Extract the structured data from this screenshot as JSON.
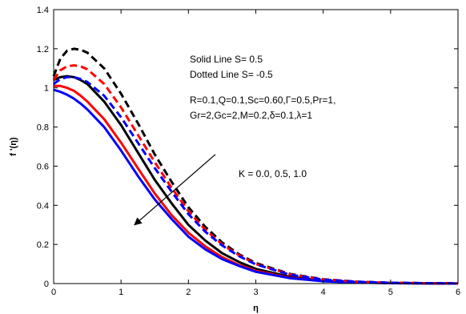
{
  "chart_data": {
    "type": "line",
    "xlabel": "η",
    "ylabel": "f '(η)",
    "xlim": [
      0,
      6
    ],
    "ylim": [
      0,
      1.4
    ],
    "xticks": [
      0,
      1,
      2,
      3,
      4,
      5,
      6
    ],
    "yticks": [
      0,
      0.2,
      0.4,
      0.6,
      0.8,
      1,
      1.2,
      1.4
    ],
    "grid": false,
    "x": [
      0,
      0.1,
      0.2,
      0.3,
      0.4,
      0.5,
      0.75,
      1.0,
      1.25,
      1.5,
      1.75,
      2.0,
      2.25,
      2.5,
      2.75,
      3.0,
      3.5,
      4.0,
      4.5,
      5.0,
      5.5,
      6.0
    ],
    "series": [
      {
        "color": "#000000",
        "dash": false,
        "values": [
          1.04,
          1.055,
          1.06,
          1.055,
          1.04,
          1.02,
          0.93,
          0.81,
          0.67,
          0.53,
          0.41,
          0.3,
          0.22,
          0.155,
          0.11,
          0.075,
          0.035,
          0.015,
          0.007,
          0.003,
          0.001,
          0
        ]
      },
      {
        "color": "#ff0000",
        "dash": false,
        "values": [
          1.01,
          1.01,
          1.0,
          0.985,
          0.96,
          0.93,
          0.84,
          0.72,
          0.59,
          0.46,
          0.35,
          0.26,
          0.19,
          0.135,
          0.095,
          0.065,
          0.03,
          0.013,
          0.006,
          0.002,
          0.001,
          0
        ]
      },
      {
        "color": "#0000ff",
        "dash": false,
        "values": [
          0.99,
          0.98,
          0.965,
          0.945,
          0.92,
          0.89,
          0.8,
          0.68,
          0.55,
          0.43,
          0.33,
          0.24,
          0.175,
          0.125,
          0.09,
          0.06,
          0.028,
          0.012,
          0.005,
          0.002,
          0.001,
          0
        ]
      },
      {
        "color": "#000000",
        "dash": true,
        "values": [
          1.06,
          1.15,
          1.19,
          1.2,
          1.195,
          1.18,
          1.1,
          0.97,
          0.82,
          0.66,
          0.52,
          0.39,
          0.29,
          0.21,
          0.15,
          0.105,
          0.05,
          0.022,
          0.01,
          0.004,
          0.002,
          0.001
        ]
      },
      {
        "color": "#ff0000",
        "dash": true,
        "values": [
          1.04,
          1.09,
          1.11,
          1.115,
          1.11,
          1.095,
          1.02,
          0.9,
          0.76,
          0.62,
          0.49,
          0.37,
          0.275,
          0.2,
          0.145,
          0.1,
          0.048,
          0.021,
          0.009,
          0.004,
          0.002,
          0.001
        ]
      },
      {
        "color": "#0000ff",
        "dash": true,
        "values": [
          1.02,
          1.045,
          1.055,
          1.055,
          1.045,
          1.03,
          0.96,
          0.85,
          0.72,
          0.59,
          0.47,
          0.355,
          0.265,
          0.195,
          0.14,
          0.098,
          0.046,
          0.02,
          0.009,
          0.004,
          0.002,
          0.001
        ]
      }
    ],
    "annotations": {
      "solid_line": "Solid Line  S= 0.5",
      "dotted_line": "Dotted Line  S= -0.5",
      "params_line1": "R=0.1,Q=0.1,Sc=0.60,Γ=0.5,Pr=1,",
      "params_line2": "Gr=2,Gc=2,M=0.2,δ=0.1,λ=1",
      "arrow_label": "K = 0.0, 0.5, 1.0",
      "arrow_from": [
        2.4,
        0.66
      ],
      "arrow_to": [
        1.2,
        0.3
      ]
    }
  }
}
